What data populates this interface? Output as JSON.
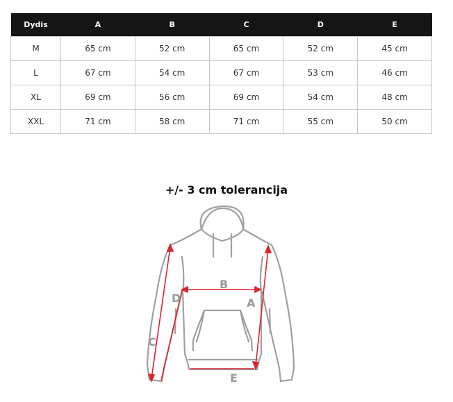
{
  "table": {
    "headers": [
      "Dydis",
      "A",
      "B",
      "C",
      "D",
      "E"
    ],
    "rows": [
      [
        "M",
        "65 cm",
        "52 cm",
        "65 cm",
        "52 cm",
        "45 cm"
      ],
      [
        "L",
        "67 cm",
        "54 cm",
        "67 cm",
        "53 cm",
        "46 cm"
      ],
      [
        "XL",
        "69 cm",
        "56 cm",
        "69 cm",
        "54 cm",
        "48 cm"
      ],
      [
        "XXL",
        "71 cm",
        "58 cm",
        "71 cm",
        "55 cm",
        "50 cm"
      ]
    ]
  },
  "tolerance": "+/- 3 cm tolerancija",
  "diagram": {
    "labels": {
      "A": "A",
      "B": "B",
      "C": "C",
      "D": "D",
      "E": "E"
    },
    "arrow_color": "#d8262c",
    "outline_color": "#9a9a9a"
  }
}
